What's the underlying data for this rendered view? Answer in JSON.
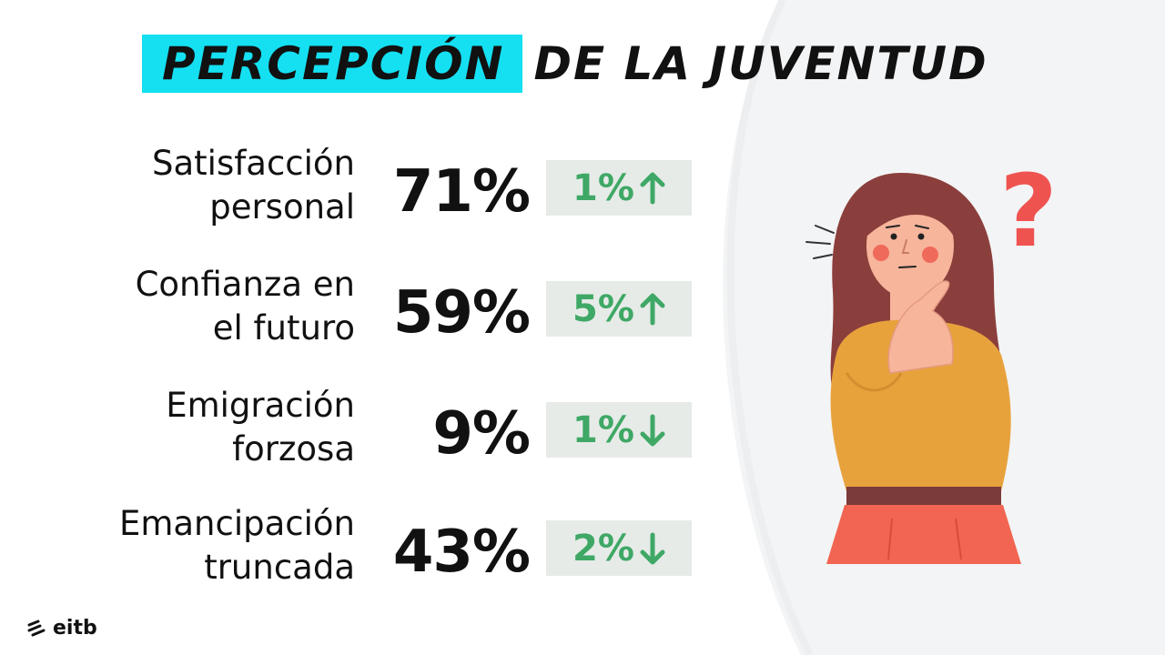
{
  "title": {
    "highlight": "PERCEPCIÓN",
    "rest": "DE LA JUVENTUD"
  },
  "rows": [
    {
      "label_line1": "Satisfacción",
      "label_line2": "personal",
      "value": "71%",
      "delta": "1%",
      "direction": "up"
    },
    {
      "label_line1": "Confianza en",
      "label_line2": "el futuro",
      "value": "59%",
      "delta": "5%",
      "direction": "up"
    },
    {
      "label_line1": "Emigración",
      "label_line2": "forzosa",
      "value": "9%",
      "delta": "1%",
      "direction": "down"
    },
    {
      "label_line1": "Emancipación",
      "label_line2": "truncada",
      "value": "43%",
      "delta": "2%",
      "direction": "down"
    }
  ],
  "logo": {
    "text": "eitb"
  },
  "illustration": {
    "name": "thinking-woman-illustration",
    "mark": "?"
  },
  "colors": {
    "highlight": "#14e0f2",
    "delta_text": "#3fa866",
    "delta_bg": "#e6ebe8",
    "question_mark": "#ef5350",
    "shirt": "#e8a23c",
    "hair": "#8b3f3c",
    "skirt": "#f26552"
  }
}
